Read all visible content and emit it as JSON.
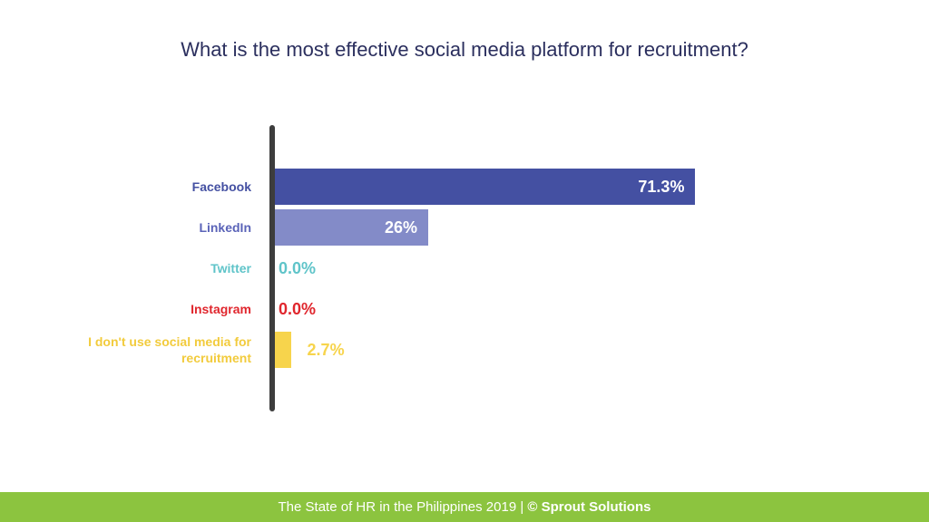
{
  "chart_data": {
    "type": "bar",
    "orientation": "horizontal",
    "title": "What is the most effective social media platform for recruitment?",
    "categories": [
      "Facebook",
      "LinkedIn",
      "Twitter",
      "Instagram",
      "I don't use social media for recruitment"
    ],
    "values": [
      71.3,
      26,
      0.0,
      0.0,
      2.7
    ],
    "value_labels": [
      "71.3%",
      "26%",
      "0.0%",
      "0.0%",
      "2.7%"
    ],
    "colors": [
      "#4450a2",
      "#838bc8",
      "#5fc4c9",
      "#e0262d",
      "#f7d44c"
    ],
    "label_colors": [
      "#4450a2",
      "#5a63b8",
      "#5fc4c9",
      "#e0262d",
      "#f2cb3c"
    ],
    "xlabel": "",
    "ylabel": "",
    "xlim": [
      0,
      100
    ],
    "grid": false
  },
  "footer": {
    "text": "The State of HR in the Philippines 2019 | ",
    "brand": "© Sprout Solutions"
  }
}
